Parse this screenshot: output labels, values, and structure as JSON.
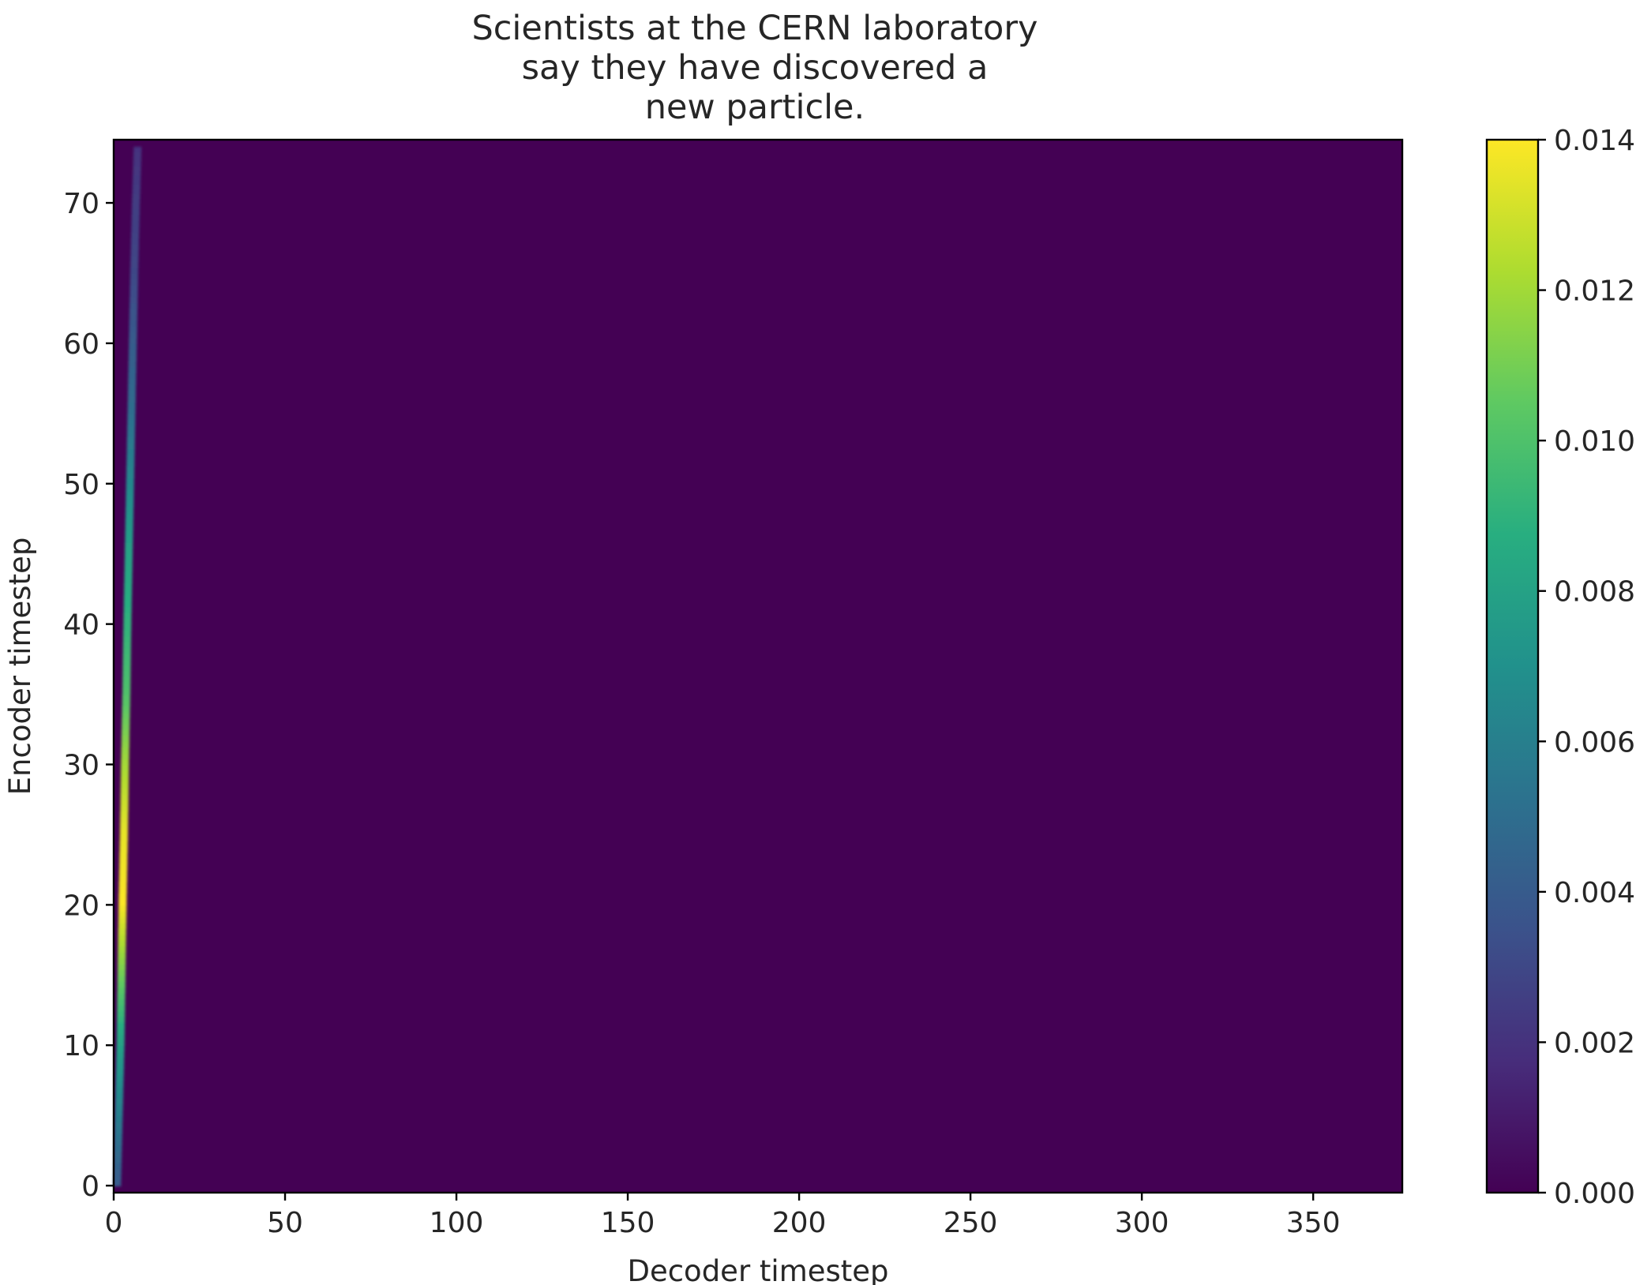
{
  "chart_data": {
    "type": "heatmap",
    "title_lines": [
      "Scientists at the CERN laboratory",
      "say they have discovered a",
      "new particle."
    ],
    "xlabel": "Decoder timestep",
    "ylabel": "Encoder timestep",
    "xlim": [
      0,
      376
    ],
    "ylim": [
      -0.5,
      74.5
    ],
    "x_ticks": [
      0,
      50,
      100,
      150,
      200,
      250,
      300,
      350
    ],
    "x_tick_labels": [
      "0",
      "50",
      "100",
      "150",
      "200",
      "250",
      "300",
      "350"
    ],
    "y_ticks": [
      0,
      10,
      20,
      30,
      40,
      50,
      60,
      70
    ],
    "y_tick_labels": [
      "0",
      "10",
      "20",
      "30",
      "40",
      "50",
      "60",
      "70"
    ],
    "colormap": "viridis",
    "background_color": "#440154",
    "colorbar": {
      "range": [
        0,
        0.014
      ],
      "ticks": [
        0,
        0.002,
        0.004,
        0.006,
        0.008,
        0.01,
        0.012,
        0.014
      ],
      "tick_labels": [
        "0.000",
        "0.002",
        "0.004",
        "0.006",
        "0.008",
        "0.010",
        "0.012",
        "0.014"
      ]
    },
    "attention_band": {
      "description_of_values": "narrow near-diagonal band at low decoder timesteps; all other cells ~0",
      "points": [
        {
          "encoder": 0,
          "decoder": 1,
          "value": 0.004
        },
        {
          "encoder": 5,
          "decoder": 1.5,
          "value": 0.006
        },
        {
          "encoder": 10,
          "decoder": 2,
          "value": 0.008
        },
        {
          "encoder": 15,
          "decoder": 2.3,
          "value": 0.011
        },
        {
          "encoder": 20,
          "decoder": 2.6,
          "value": 0.014
        },
        {
          "encoder": 25,
          "decoder": 3,
          "value": 0.0135
        },
        {
          "encoder": 30,
          "decoder": 3.3,
          "value": 0.012
        },
        {
          "encoder": 35,
          "decoder": 3.7,
          "value": 0.01
        },
        {
          "encoder": 40,
          "decoder": 4,
          "value": 0.009
        },
        {
          "encoder": 45,
          "decoder": 4.4,
          "value": 0.008
        },
        {
          "encoder": 50,
          "decoder": 4.8,
          "value": 0.0065
        },
        {
          "encoder": 55,
          "decoder": 5.2,
          "value": 0.005
        },
        {
          "encoder": 60,
          "decoder": 5.6,
          "value": 0.004
        },
        {
          "encoder": 65,
          "decoder": 6,
          "value": 0.003
        },
        {
          "encoder": 70,
          "decoder": 6.5,
          "value": 0.0025
        },
        {
          "encoder": 74,
          "decoder": 7,
          "value": 0.002
        }
      ]
    }
  }
}
